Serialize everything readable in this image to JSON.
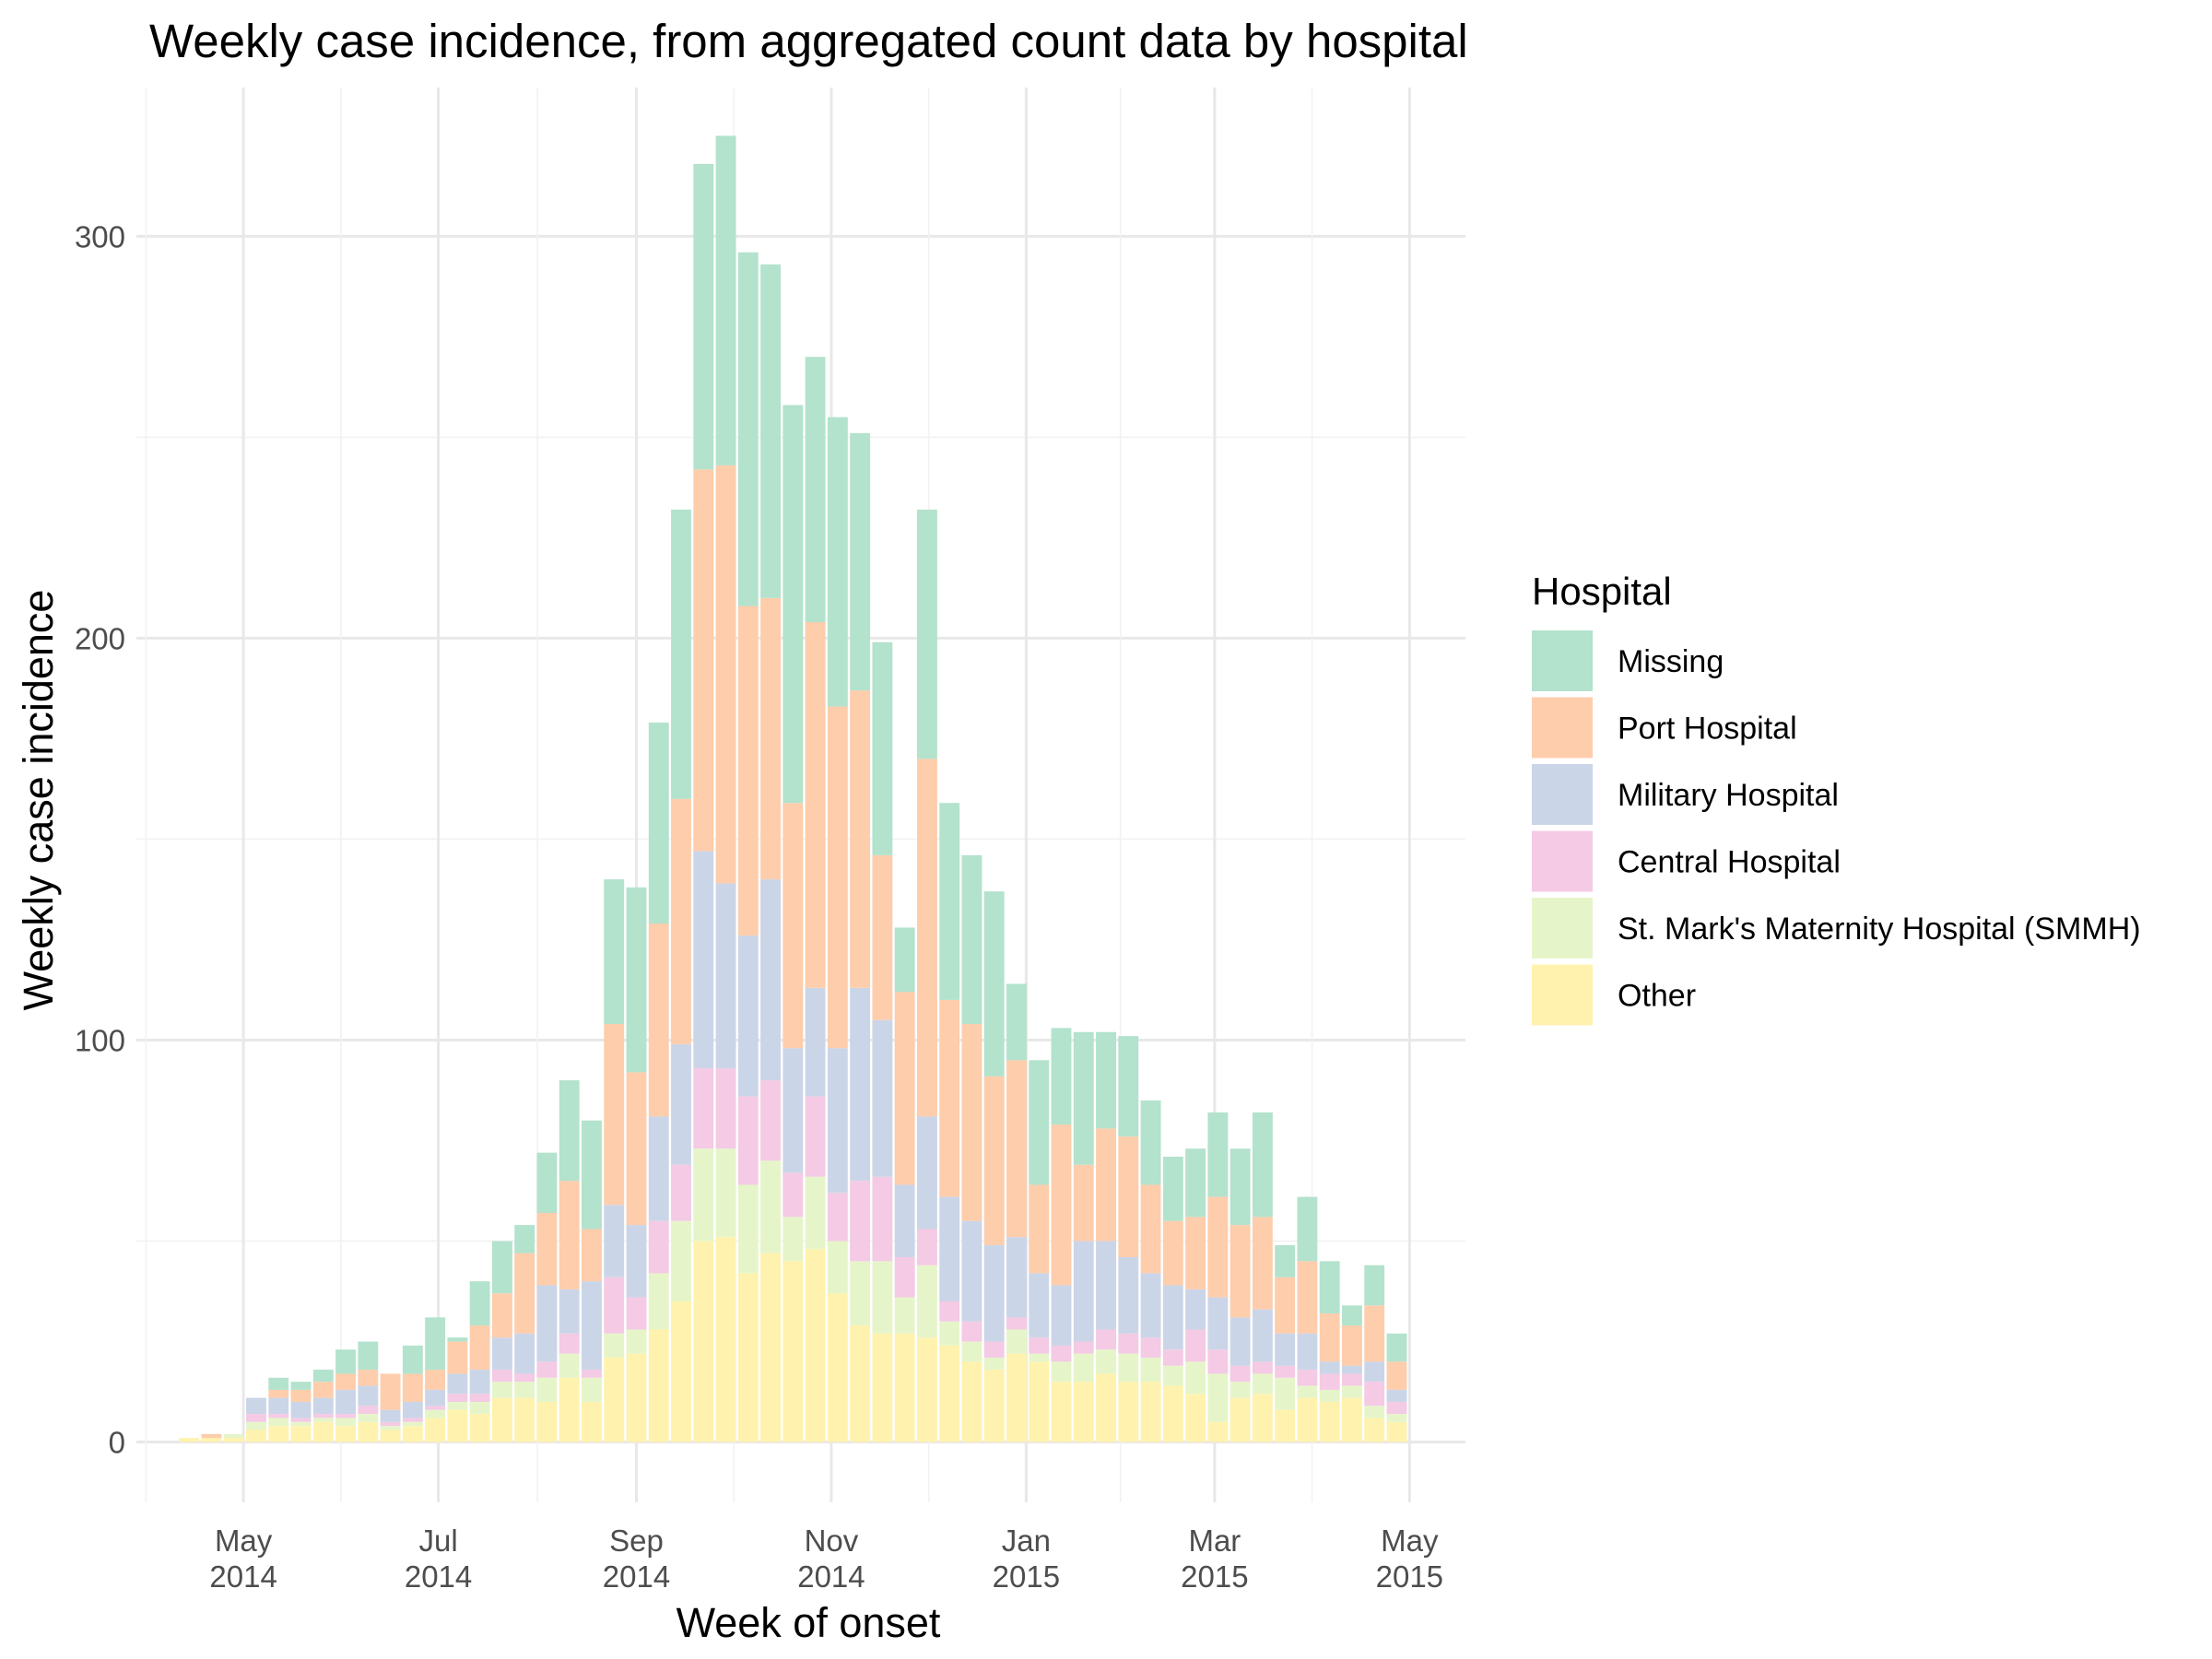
{
  "chart_data": {
    "type": "bar",
    "stacked": true,
    "title": "Weekly case incidence, from aggregated count data by hospital",
    "xlabel": "Week of onset",
    "ylabel": "Weekly case incidence",
    "ylim": [
      -15,
      337
    ],
    "y_ticks": [
      0,
      100,
      200,
      300
    ],
    "x_ticks": [
      {
        "date": "2014-05-01",
        "line1": "May",
        "line2": "2014"
      },
      {
        "date": "2014-07-01",
        "line1": "Jul",
        "line2": "2014"
      },
      {
        "date": "2014-09-01",
        "line1": "Sep",
        "line2": "2014"
      },
      {
        "date": "2014-11-01",
        "line1": "Nov",
        "line2": "2014"
      },
      {
        "date": "2015-01-01",
        "line1": "Jan",
        "line2": "2015"
      },
      {
        "date": "2015-03-01",
        "line1": "Mar",
        "line2": "2015"
      },
      {
        "date": "2015-05-01",
        "line1": "May",
        "line2": "2015"
      }
    ],
    "grid": true,
    "legend_position": "right",
    "legend_title": "Hospital",
    "categories": [
      "2014-04-14",
      "2014-04-21",
      "2014-04-28",
      "2014-05-05",
      "2014-05-12",
      "2014-05-19",
      "2014-05-26",
      "2014-06-02",
      "2014-06-09",
      "2014-06-16",
      "2014-06-23",
      "2014-06-30",
      "2014-07-07",
      "2014-07-14",
      "2014-07-21",
      "2014-07-28",
      "2014-08-04",
      "2014-08-11",
      "2014-08-18",
      "2014-08-25",
      "2014-09-01",
      "2014-09-08",
      "2014-09-15",
      "2014-09-22",
      "2014-09-29",
      "2014-10-06",
      "2014-10-13",
      "2014-10-20",
      "2014-10-27",
      "2014-11-03",
      "2014-11-10",
      "2014-11-17",
      "2014-11-24",
      "2014-12-01",
      "2014-12-08",
      "2014-12-15",
      "2014-12-22",
      "2014-12-29",
      "2015-01-05",
      "2015-01-12",
      "2015-01-19",
      "2015-01-26",
      "2015-02-02",
      "2015-02-09",
      "2015-02-16",
      "2015-02-23",
      "2015-03-02",
      "2015-03-09",
      "2015-03-16",
      "2015-03-23",
      "2015-03-30",
      "2015-04-06",
      "2015-04-13",
      "2015-04-20",
      "2015-04-27"
    ],
    "series": [
      {
        "name": "Other",
        "color": "#fff2ae",
        "values": [
          1,
          1,
          1,
          3,
          4,
          4,
          5,
          4,
          5,
          3,
          4,
          6,
          8,
          7,
          11,
          11,
          10,
          16,
          10,
          21,
          22,
          28,
          35,
          50,
          51,
          42,
          47,
          45,
          48,
          37,
          29,
          27,
          27,
          26,
          24,
          20,
          18,
          22,
          20,
          15,
          15,
          17,
          15,
          15,
          14,
          12,
          5,
          11,
          12,
          8,
          11,
          10,
          11,
          6,
          5
        ]
      },
      {
        "name": "St. Mark's Maternity Hospital (SMMH)",
        "color": "#e6f5c9",
        "values": [
          0,
          0,
          1,
          2,
          2,
          1,
          1,
          2,
          2,
          1,
          1,
          2,
          2,
          3,
          4,
          4,
          6,
          6,
          6,
          6,
          6,
          14,
          20,
          23,
          22,
          22,
          23,
          11,
          18,
          13,
          16,
          18,
          9,
          18,
          6,
          5,
          3,
          6,
          2,
          5,
          7,
          6,
          7,
          6,
          5,
          8,
          12,
          4,
          5,
          8,
          3,
          3,
          3,
          3,
          2
        ]
      },
      {
        "name": "Central Hospital",
        "color": "#f4cae4",
        "values": [
          0,
          0,
          0,
          2,
          1,
          1,
          1,
          1,
          2,
          1,
          1,
          1,
          2,
          2,
          3,
          2,
          4,
          5,
          2,
          14,
          8,
          13,
          14,
          20,
          20,
          22,
          20,
          11,
          20,
          12,
          20,
          21,
          10,
          9,
          5,
          5,
          4,
          3,
          4,
          4,
          3,
          5,
          5,
          5,
          4,
          8,
          6,
          4,
          3,
          3,
          4,
          4,
          3,
          6,
          3
        ]
      },
      {
        "name": "Military Hospital",
        "color": "#cbd5e8",
        "values": [
          0,
          0,
          0,
          4,
          4,
          4,
          4,
          6,
          5,
          3,
          4,
          4,
          5,
          6,
          8,
          10,
          19,
          11,
          22,
          18,
          18,
          26,
          30,
          54,
          46,
          40,
          50,
          31,
          27,
          36,
          48,
          39,
          18,
          28,
          26,
          25,
          24,
          20,
          16,
          15,
          25,
          22,
          19,
          16,
          16,
          10,
          13,
          12,
          13,
          8,
          9,
          3,
          2,
          5,
          3
        ]
      },
      {
        "name": "Port Hospital",
        "color": "#fdcdac",
        "values": [
          0,
          1,
          0,
          0,
          2,
          3,
          4,
          4,
          4,
          9,
          7,
          5,
          8,
          11,
          11,
          20,
          18,
          27,
          13,
          45,
          38,
          48,
          61,
          95,
          104,
          82,
          70,
          61,
          91,
          85,
          74,
          41,
          48,
          89,
          49,
          49,
          42,
          44,
          22,
          40,
          19,
          28,
          30,
          22,
          16,
          18,
          25,
          23,
          23,
          14,
          18,
          12,
          10,
          14,
          7
        ]
      },
      {
        "name": "Missing",
        "color": "#b3e2cd",
        "values": [
          0,
          0,
          0,
          0,
          3,
          2,
          3,
          6,
          7,
          0,
          7,
          13,
          1,
          11,
          13,
          7,
          15,
          25,
          27,
          36,
          46,
          50,
          72,
          76,
          82,
          88,
          83,
          99,
          66,
          72,
          64,
          53,
          16,
          62,
          49,
          42,
          46,
          19,
          31,
          24,
          33,
          24,
          25,
          21,
          16,
          17,
          21,
          19,
          26,
          8,
          16,
          13,
          5,
          10,
          7
        ]
      }
    ]
  }
}
